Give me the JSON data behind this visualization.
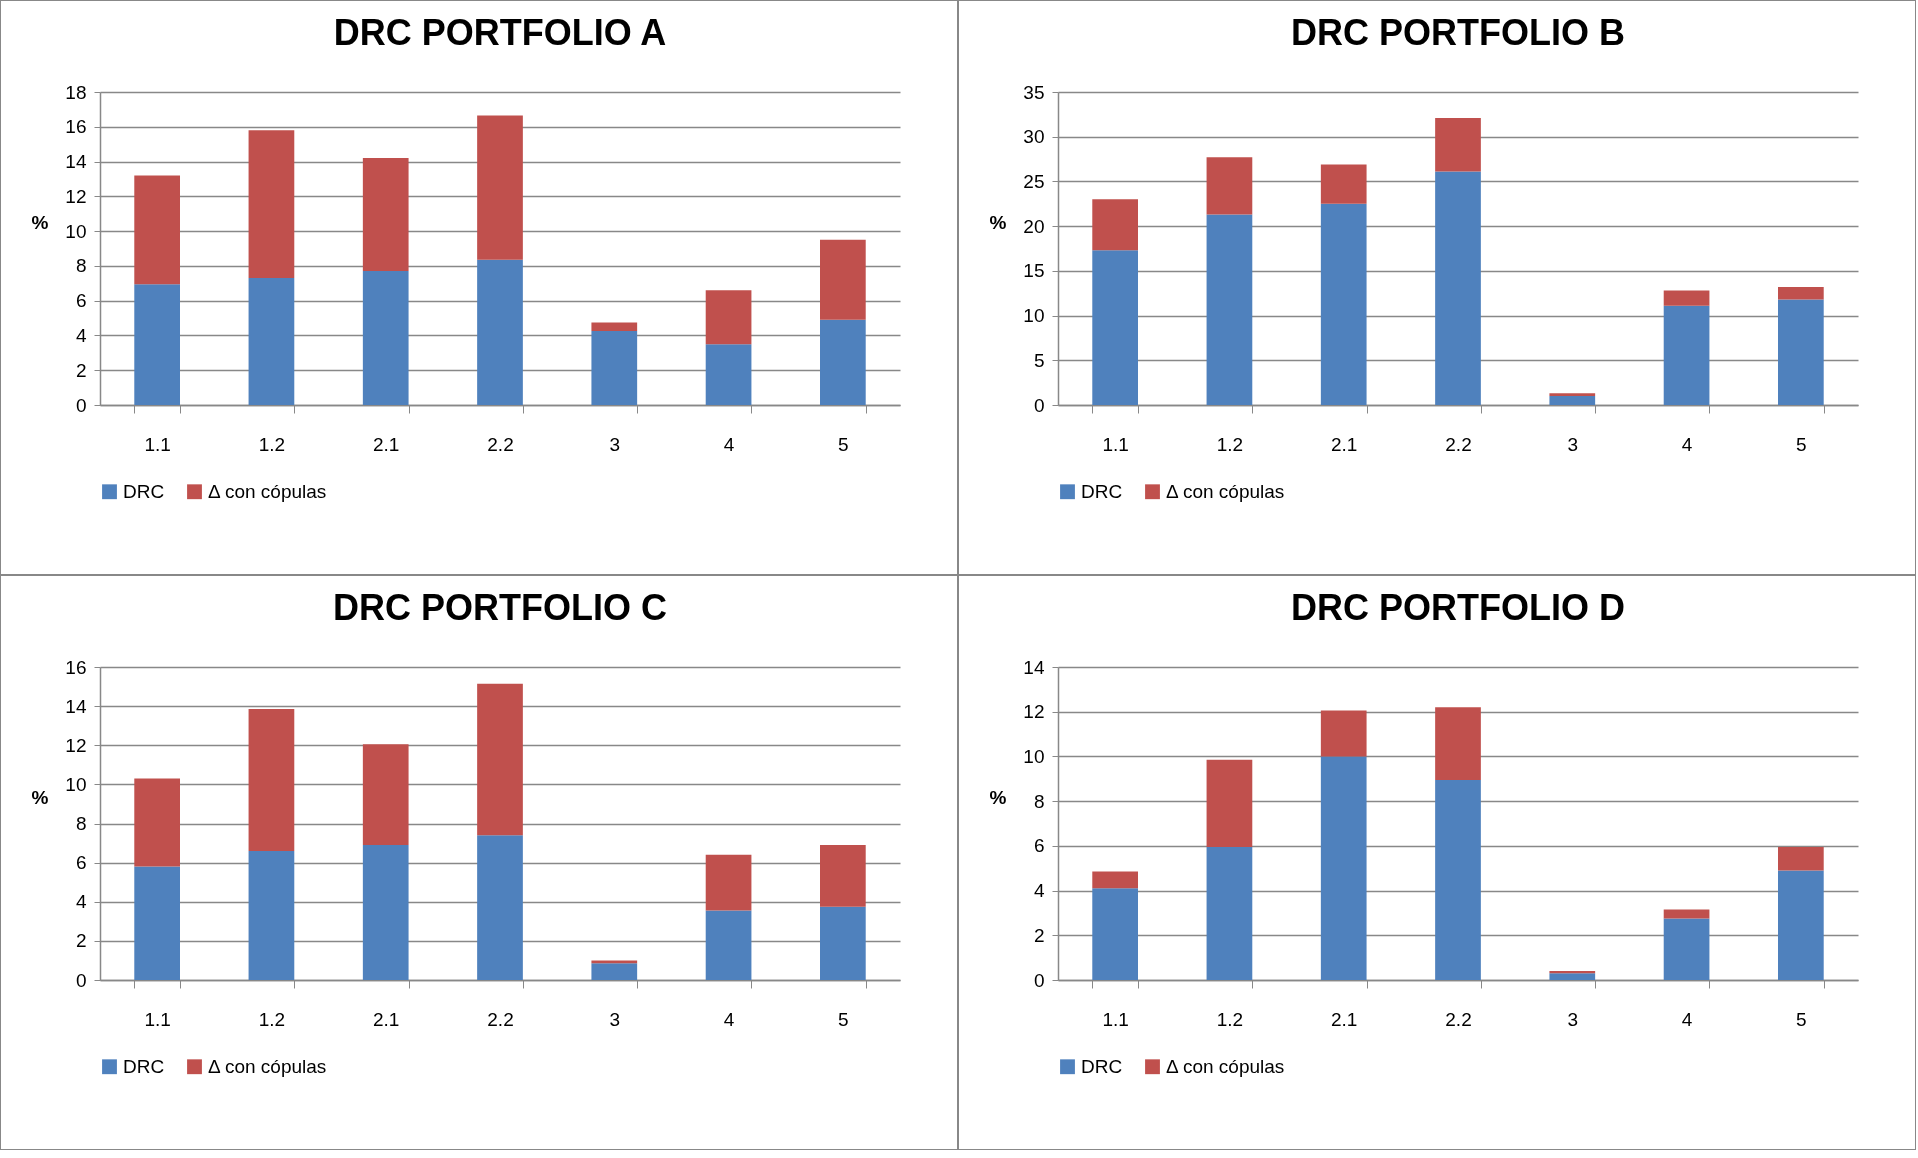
{
  "chart_data": [
    {
      "type": "bar",
      "title": "DRC PORTFOLIO A",
      "ylabel": "%",
      "categories": [
        "1.1",
        "1.2",
        "2.1",
        "2.2",
        "3",
        "4",
        "5"
      ],
      "stacked": true,
      "ylim": [
        0,
        18
      ],
      "yticks": [
        0,
        2,
        4,
        6,
        8,
        10,
        12,
        14,
        16,
        18
      ],
      "grid": "y",
      "legend": "bottom",
      "series": [
        {
          "name": "DRC",
          "color": "#4f81bd",
          "values": [
            6.95,
            7.3,
            7.7,
            8.35,
            4.25,
            3.5,
            4.9
          ]
        },
        {
          "name": "Δ con cópulas",
          "color": "#c0504d",
          "values": [
            6.25,
            8.5,
            6.5,
            8.3,
            0.5,
            3.1,
            4.6
          ]
        }
      ]
    },
    {
      "type": "bar",
      "title": "DRC PORTFOLIO B",
      "ylabel": "%",
      "categories": [
        "1.1",
        "1.2",
        "2.1",
        "2.2",
        "3",
        "4",
        "5"
      ],
      "stacked": true,
      "ylim": [
        0,
        35
      ],
      "yticks": [
        0,
        5,
        10,
        15,
        20,
        25,
        30,
        35
      ],
      "grid": "y",
      "legend": "bottom",
      "series": [
        {
          "name": "DRC",
          "color": "#4f81bd",
          "values": [
            17.3,
            21.3,
            22.5,
            26.1,
            1.0,
            11.1,
            11.8
          ]
        },
        {
          "name": "Δ con cópulas",
          "color": "#c0504d",
          "values": [
            5.7,
            6.4,
            4.4,
            6.0,
            0.3,
            1.7,
            1.4
          ]
        }
      ]
    },
    {
      "type": "bar",
      "title": "DRC PORTFOLIO C",
      "ylabel": "%",
      "categories": [
        "1.1",
        "1.2",
        "2.1",
        "2.2",
        "3",
        "4",
        "5"
      ],
      "stacked": true,
      "ylim": [
        0,
        16
      ],
      "yticks": [
        0,
        2,
        4,
        6,
        8,
        10,
        12,
        14,
        16
      ],
      "grid": "y",
      "legend": "bottom",
      "series": [
        {
          "name": "DRC",
          "color": "#4f81bd",
          "values": [
            5.8,
            6.6,
            6.9,
            7.4,
            0.85,
            3.55,
            3.75
          ]
        },
        {
          "name": "Δ con cópulas",
          "color": "#c0504d",
          "values": [
            4.5,
            7.25,
            5.15,
            7.75,
            0.15,
            2.85,
            3.15
          ]
        }
      ]
    },
    {
      "type": "bar",
      "title": "DRC PORTFOLIO D",
      "ylabel": "%",
      "categories": [
        "1.1",
        "1.2",
        "2.1",
        "2.2",
        "3",
        "4",
        "5"
      ],
      "stacked": true,
      "ylim": [
        0,
        14
      ],
      "yticks": [
        0,
        2,
        4,
        6,
        8,
        10,
        12,
        14
      ],
      "grid": "y",
      "legend": "bottom",
      "series": [
        {
          "name": "DRC",
          "color": "#4f81bd",
          "values": [
            4.1,
            5.95,
            10.0,
            8.95,
            0.3,
            2.75,
            4.9
          ]
        },
        {
          "name": "Δ con cópulas",
          "color": "#c0504d",
          "values": [
            0.75,
            3.9,
            2.05,
            3.25,
            0.1,
            0.4,
            1.05
          ]
        }
      ]
    }
  ]
}
